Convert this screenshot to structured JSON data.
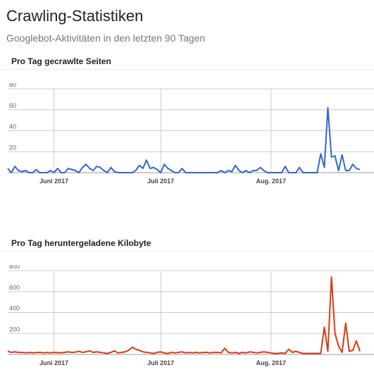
{
  "page": {
    "title": "Crawling-Statistiken",
    "subtitle": "Googlebot-Aktivitäten in den letzten 90 Tagen"
  },
  "colors": {
    "series1": "#3366cc",
    "series2": "#dc3912",
    "grid": "#cccccc",
    "axis": "#999999",
    "tick_text": "#666666",
    "month_text": "#444444"
  },
  "chart_data": [
    {
      "type": "line",
      "title": "Pro Tag gecrawlte Seiten",
      "xlabel": "",
      "ylabel": "",
      "ylim": [
        0,
        80
      ],
      "yticks": [
        20,
        40,
        60,
        80
      ],
      "month_labels": [
        {
          "label": "Juni 2017",
          "day": 13
        },
        {
          "label": "Juli 2017",
          "day": 43
        },
        {
          "label": "Aug. 2017",
          "day": 74
        }
      ],
      "grid": true,
      "legend": "none",
      "color": "series1",
      "values": [
        4,
        0,
        6,
        2,
        1,
        2,
        0,
        0,
        3,
        0,
        0,
        0,
        2,
        0,
        4,
        0,
        0,
        4,
        3,
        2,
        0,
        5,
        8,
        4,
        2,
        6,
        5,
        2,
        0,
        5,
        1,
        0,
        0,
        0,
        0,
        0,
        2,
        7,
        4,
        12,
        4,
        5,
        3,
        0,
        8,
        4,
        2,
        0,
        0,
        4,
        0,
        0,
        0,
        0,
        0,
        0,
        0,
        0,
        0,
        0,
        2,
        0,
        2,
        1,
        7,
        2,
        0,
        2,
        0,
        2,
        2,
        5,
        2,
        0,
        0,
        0,
        0,
        0,
        6,
        0,
        0,
        0,
        5,
        0,
        0,
        0,
        0,
        0,
        18,
        5,
        62,
        15,
        16,
        2,
        17,
        2,
        2,
        8,
        4,
        3
      ]
    },
    {
      "type": "line",
      "title": "Pro Tag heruntergeladene Kilobyte",
      "xlabel": "",
      "ylabel": "",
      "ylim": [
        0,
        800
      ],
      "yticks": [
        200,
        400,
        600,
        800
      ],
      "month_labels": [
        {
          "label": "Juni 2017",
          "day": 13
        },
        {
          "label": "Juli 2017",
          "day": 43
        },
        {
          "label": "Aug. 2017",
          "day": 74
        }
      ],
      "grid": true,
      "legend": "none",
      "color": "series2",
      "values": [
        30,
        20,
        25,
        20,
        20,
        15,
        20,
        15,
        18,
        20,
        15,
        20,
        15,
        20,
        18,
        15,
        20,
        25,
        20,
        22,
        30,
        20,
        25,
        35,
        20,
        25,
        20,
        15,
        10,
        20,
        35,
        15,
        20,
        25,
        40,
        70,
        50,
        40,
        25,
        20,
        15,
        10,
        20,
        25,
        15,
        10,
        20,
        15,
        20,
        25,
        15,
        20,
        15,
        20,
        15,
        20,
        20,
        15,
        20,
        20,
        15,
        60,
        20,
        15,
        20,
        10,
        20,
        15,
        25,
        20,
        15,
        20,
        25,
        20,
        15,
        10,
        10,
        15,
        10,
        50,
        20,
        30,
        20,
        10,
        10,
        10,
        10,
        10,
        10,
        260,
        30,
        740,
        200,
        80,
        20,
        300,
        30,
        40,
        130,
        30
      ]
    }
  ]
}
